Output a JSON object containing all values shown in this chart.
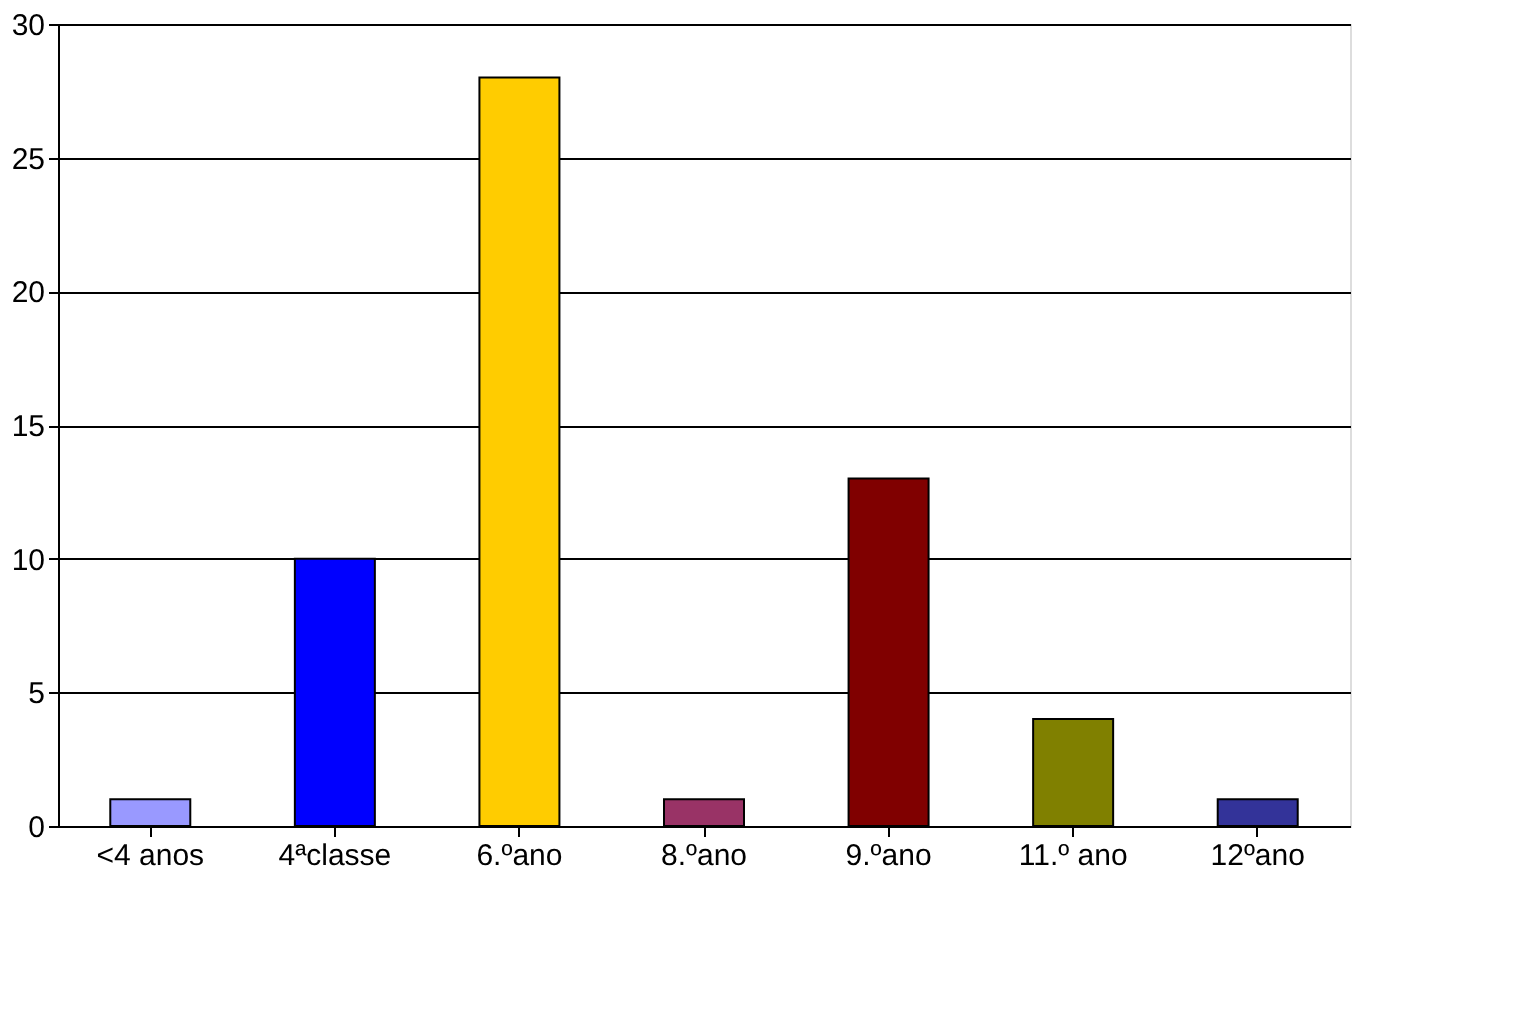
{
  "chart_data": {
    "type": "bar",
    "categories": [
      "<4 anos",
      "4ªclasse",
      "6.ºano",
      "8.ºano",
      "9.ºano",
      "11.º ano",
      "12ºano"
    ],
    "values": [
      1,
      10,
      28,
      1,
      13,
      4,
      1
    ],
    "colors": [
      "#9999ff",
      "#0000ff",
      "#ffcc00",
      "#993366",
      "#800000",
      "#808000",
      "#333399"
    ],
    "ylim": [
      0,
      30
    ],
    "yticks": [
      0,
      5,
      10,
      15,
      20,
      25,
      30
    ],
    "grid": "y"
  }
}
